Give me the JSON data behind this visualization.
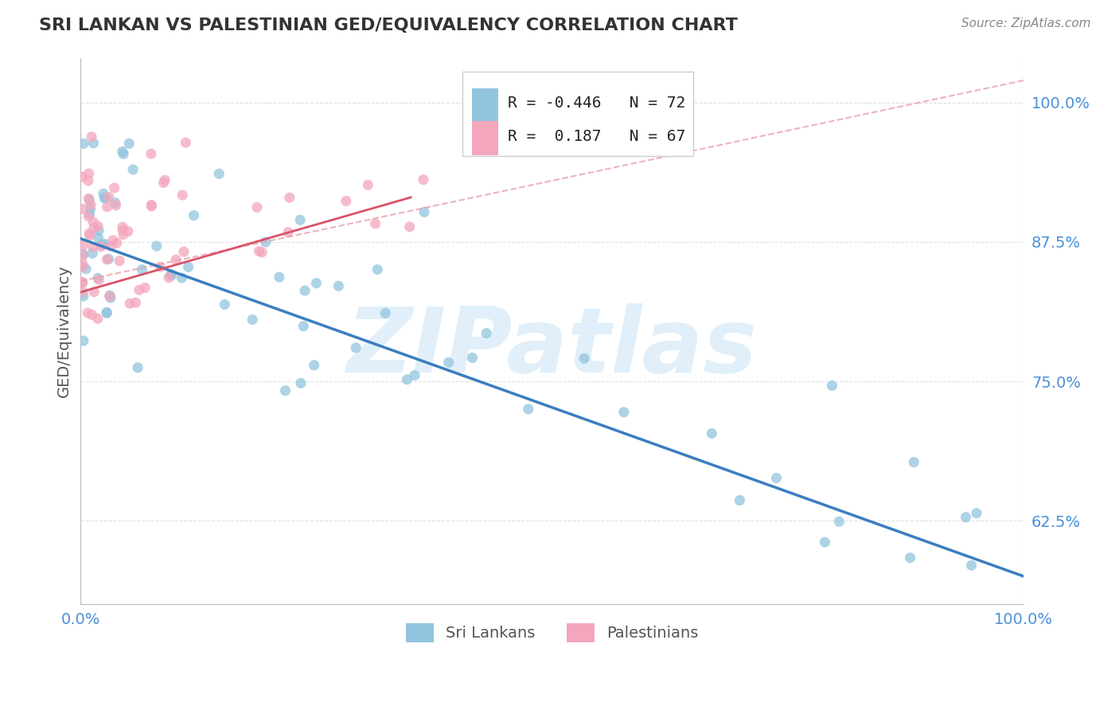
{
  "title": "SRI LANKAN VS PALESTINIAN GED/EQUIVALENCY CORRELATION CHART",
  "source_text": "Source: ZipAtlas.com",
  "ylabel": "GED/Equivalency",
  "xlim": [
    0.0,
    100.0
  ],
  "ylim": [
    55.0,
    104.0
  ],
  "yticks": [
    62.5,
    75.0,
    87.5,
    100.0
  ],
  "ytick_labels": [
    "62.5%",
    "75.0%",
    "87.5%",
    "100.0%"
  ],
  "xticks": [
    0.0,
    100.0
  ],
  "xtick_labels": [
    "0.0%",
    "100.0%"
  ],
  "blue_color": "#92c5de",
  "pink_color": "#f4a6bc",
  "blue_line_color": "#3a7ebf",
  "pink_line_color": "#d9536a",
  "pink_dashed_color": "#e8a0aa",
  "legend_blue_R": "-0.446",
  "legend_blue_N": "72",
  "legend_pink_R": "0.187",
  "legend_pink_N": "67",
  "blue_label": "Sri Lankans",
  "pink_label": "Palestinians",
  "watermark": "ZIPatlas",
  "background_color": "#ffffff",
  "grid_color": "#cccccc",
  "title_color": "#333333",
  "axis_label_color": "#555555",
  "tick_color": "#4a90d9",
  "blue_line_x0": 0,
  "blue_line_x1": 100,
  "blue_line_y0": 87.8,
  "blue_line_y1": 57.5,
  "pink_solid_x0": 0,
  "pink_solid_x1": 35,
  "pink_solid_y0": 83.0,
  "pink_solid_y1": 91.5,
  "pink_dashed_x0": 0,
  "pink_dashed_x1": 100,
  "pink_dashed_y0": 84.0,
  "pink_dashed_y1": 102.0
}
